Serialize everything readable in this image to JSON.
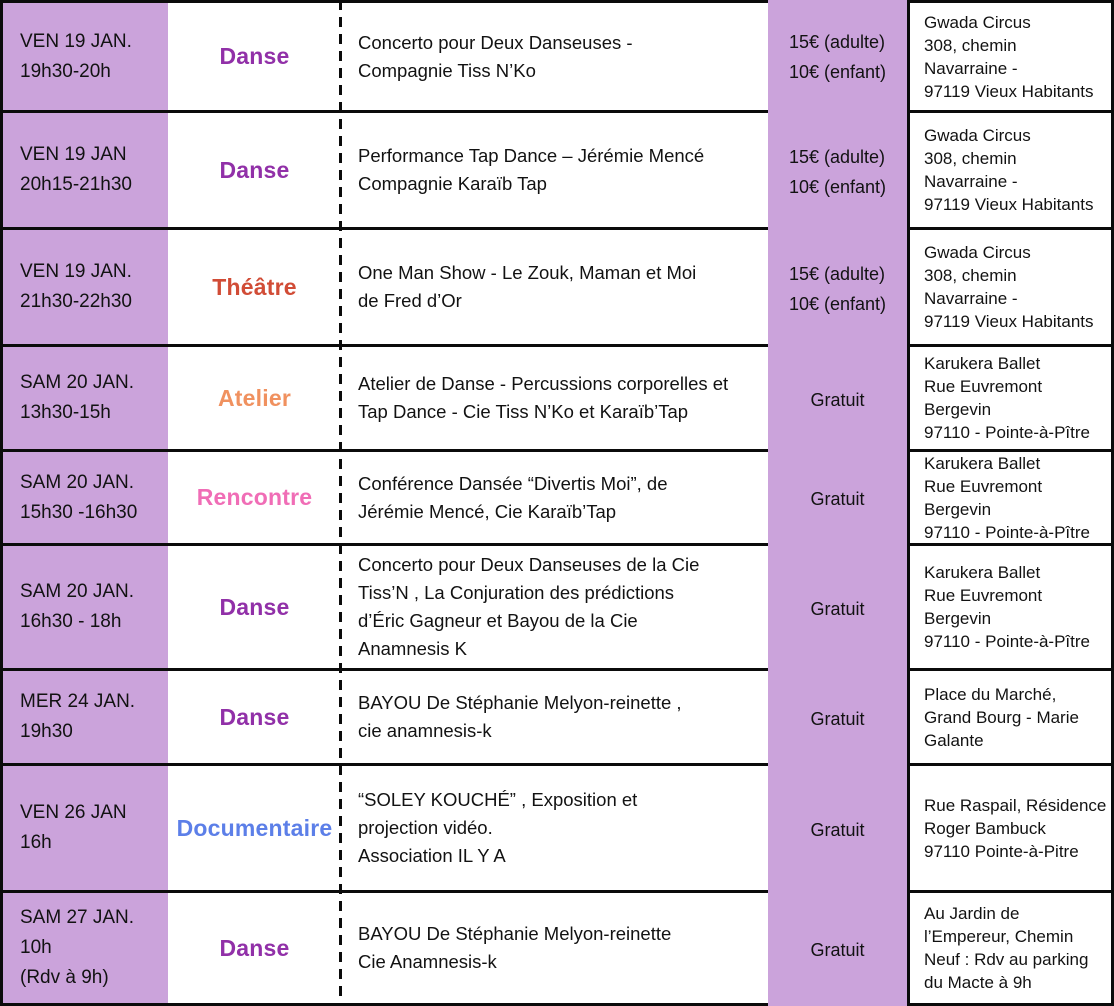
{
  "colors": {
    "band": "#cba3db",
    "border": "#0b0b0b",
    "category": {
      "danse": "#9130a8",
      "theatre": "#d14c36",
      "atelier": "#f0915f",
      "rencontre": "#f06db6",
      "documentaire": "#5c7fe8"
    }
  },
  "rows": [
    {
      "date_lines": [
        "VEN 19 JAN.",
        "19h30-20h"
      ],
      "category": "Danse",
      "category_key": "danse",
      "description_lines": [
        "Concerto pour Deux Danseuses -",
        "Compagnie Tiss N’Ko"
      ],
      "price_lines": [
        "15€ (adulte)",
        "10€ (enfant)"
      ],
      "location_lines": [
        "Gwada Circus",
        "308, chemin",
        "Navarraine -",
        "97119 Vieux Habitants"
      ]
    },
    {
      "date_lines": [
        "VEN 19 JAN",
        "20h15-21h30"
      ],
      "category": "Danse",
      "category_key": "danse",
      "description_lines": [
        "Performance Tap Dance – Jérémie Mencé",
        "Compagnie Karaïb Tap"
      ],
      "price_lines": [
        "15€ (adulte)",
        "10€ (enfant)"
      ],
      "location_lines": [
        "Gwada Circus",
        "308, chemin",
        "Navarraine -",
        "97119 Vieux Habitants"
      ]
    },
    {
      "date_lines": [
        "VEN 19 JAN.",
        "21h30-22h30"
      ],
      "category": "Théâtre",
      "category_key": "theatre",
      "description_lines": [
        "One Man Show - Le Zouk, Maman et Moi",
        "de Fred d’Or"
      ],
      "price_lines": [
        "15€ (adulte)",
        "10€ (enfant)"
      ],
      "location_lines": [
        "Gwada Circus",
        "308, chemin",
        "Navarraine -",
        "97119 Vieux Habitants"
      ]
    },
    {
      "date_lines": [
        "SAM 20 JAN.",
        "13h30-15h"
      ],
      "category": "Atelier",
      "category_key": "atelier",
      "description_lines": [
        "Atelier de Danse - Percussions corporelles et",
        "Tap Dance - Cie Tiss N’Ko et Karaïb’Tap"
      ],
      "price_lines": [
        "Gratuit"
      ],
      "location_lines": [
        "Karukera Ballet",
        "Rue Euvremont",
        "Bergevin",
        "97110 - Pointe-à-Pître"
      ]
    },
    {
      "date_lines": [
        "SAM 20 JAN.",
        "15h30 -16h30"
      ],
      "category": "Rencontre",
      "category_key": "rencontre",
      "description_lines": [
        "Conférence Dansée “Divertis Moi”, de",
        "Jérémie Mencé, Cie Karaïb’Tap"
      ],
      "price_lines": [
        "Gratuit"
      ],
      "location_lines": [
        "Karukera Ballet",
        "Rue Euvremont",
        "Bergevin",
        "97110 - Pointe-à-Pître"
      ]
    },
    {
      "date_lines": [
        "SAM 20 JAN.",
        "16h30 - 18h"
      ],
      "category": "Danse",
      "category_key": "danse",
      "description_lines": [
        "Concerto  pour Deux Danseuses de la Cie",
        "Tiss’N , La Conjuration des prédictions",
        "d’Éric Gagneur et  Bayou de la Cie",
        "Anamnesis K"
      ],
      "price_lines": [
        "Gratuit"
      ],
      "location_lines": [
        "Karukera Ballet",
        "Rue Euvremont",
        "Bergevin",
        "97110 - Pointe-à-Pître"
      ]
    },
    {
      "date_lines": [
        "MER 24 JAN.",
        "19h30"
      ],
      "category": "Danse",
      "category_key": "danse",
      "description_lines": [
        "BAYOU De Stéphanie Melyon-reinette ,",
        "cie anamnesis-k"
      ],
      "price_lines": [
        "Gratuit"
      ],
      "location_lines": [
        "Place du Marché,",
        "Grand Bourg - Marie",
        "Galante"
      ]
    },
    {
      "date_lines": [
        "VEN 26 JAN",
        "16h"
      ],
      "category": "Documentaire",
      "category_key": "documentaire",
      "description_lines": [
        "“SOLEY KOUCHÉ” , Exposition et",
        "projection vidéo.",
        "Association IL Y A"
      ],
      "price_lines": [
        "Gratuit"
      ],
      "location_lines": [
        "Rue Raspail, Résidence",
        "Roger Bambuck",
        "97110 Pointe-à-Pitre"
      ]
    },
    {
      "date_lines": [
        "SAM 27 JAN.",
        "10h",
        "(Rdv à 9h)"
      ],
      "category": "Danse",
      "category_key": "danse",
      "description_lines": [
        "BAYOU De Stéphanie Melyon-reinette",
        "Cie Anamnesis-k"
      ],
      "price_lines": [
        "Gratuit"
      ],
      "location_lines": [
        "Au Jardin de",
        "l’Empereur, Chemin",
        "Neuf : Rdv au parking",
        "du Macte à 9h"
      ]
    }
  ]
}
